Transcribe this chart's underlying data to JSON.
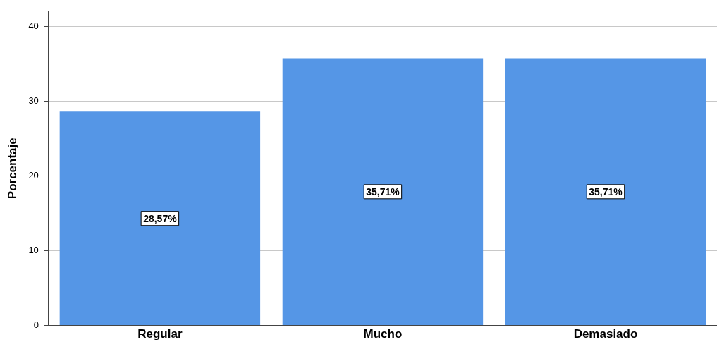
{
  "chart_data": {
    "type": "bar",
    "ylabel": "Porcentaje",
    "categories": [
      "Regular",
      "Mucho",
      "Demasiado"
    ],
    "values": [
      28.57,
      35.71,
      35.71
    ],
    "value_labels": [
      "28,57%",
      "35,71%",
      "35,71%"
    ],
    "color": "#5596e6",
    "ylim": [
      0,
      42
    ],
    "yticks": [
      0,
      10,
      20,
      30,
      40
    ],
    "grid": "y",
    "legend": false
  }
}
